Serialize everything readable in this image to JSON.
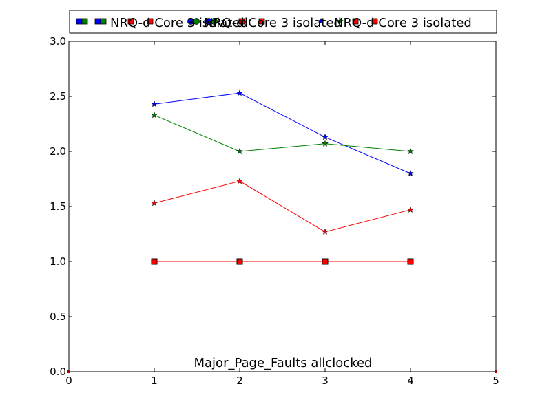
{
  "chart_data": {
    "type": "line",
    "title": "",
    "xlabel": "",
    "ylabel": "",
    "xlim": [
      0,
      5
    ],
    "ylim": [
      0,
      3.0
    ],
    "x_ticks": [
      "0",
      "1",
      "2",
      "3",
      "4",
      "5"
    ],
    "y_ticks": [
      "0.0",
      "0.5",
      "1.0",
      "1.5",
      "2.0",
      "2.5",
      "3.0"
    ],
    "grid": false,
    "legend_placement": "top",
    "annotation": "Major_Page_Faults allclocked",
    "x": [
      1,
      2,
      3,
      4
    ],
    "series": [
      {
        "name": "NRQ-d Core 3",
        "color": "#0000ff",
        "marker": "square",
        "values": [
          1.0,
          1.0,
          1.0,
          1.0
        ]
      },
      {
        "name": "NRQ-d Core 3",
        "color": "#008000",
        "marker": "square",
        "values": [
          1.0,
          1.0,
          1.0,
          1.0
        ]
      },
      {
        "name": "NRQ-d Core 3",
        "color": "#ff0000",
        "marker": "square",
        "values": [
          1.0,
          1.0,
          1.0,
          1.0
        ]
      },
      {
        "name": "isolated",
        "color": "#0000ff",
        "marker": "star",
        "values": [
          2.43,
          2.53,
          2.13,
          1.8
        ]
      },
      {
        "name": "isolated",
        "color": "#008000",
        "marker": "star",
        "values": [
          2.33,
          2.0,
          2.07,
          2.0
        ]
      },
      {
        "name": "isolated",
        "color": "#ff0000",
        "marker": "star",
        "values": [
          1.53,
          1.73,
          1.27,
          1.47
        ]
      }
    ],
    "legend_texts": [
      "NRQ-d Core 3 isolated",
      "NRQ-d Core 3 isolated",
      "NRQ-d Core 3 isolated"
    ],
    "legend_colors": [
      [
        "#0000ff",
        "#008000"
      ],
      [
        "#ff0000",
        "#ff0000"
      ],
      [
        "#0000ff",
        "#008000"
      ],
      [
        "#ff0000",
        "#ff0000"
      ],
      [
        "#0000ff",
        "#008000"
      ]
    ]
  }
}
